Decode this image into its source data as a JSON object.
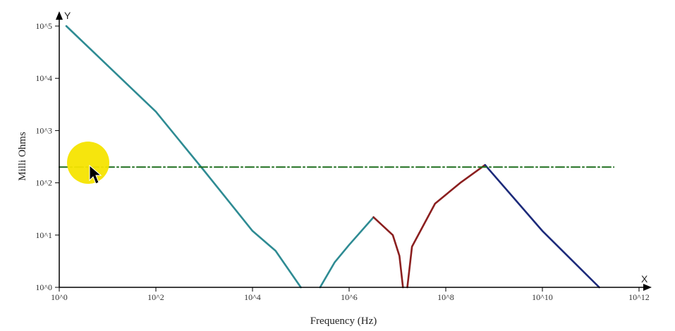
{
  "chart_data": {
    "type": "line",
    "title": "",
    "xlabel": "Frequency (Hz)",
    "ylabel": "Milli Ohms",
    "x_axis_letter": "X",
    "y_axis_letter": "Y",
    "x_scale": "log",
    "y_scale": "log",
    "xlim": [
      1,
      1000000000000
    ],
    "ylim": [
      1,
      100000
    ],
    "x_ticks": [
      {
        "value": 1,
        "label": "10^0"
      },
      {
        "value": 100,
        "label": "10^2"
      },
      {
        "value": 10000,
        "label": "10^4"
      },
      {
        "value": 1000000,
        "label": "10^6"
      },
      {
        "value": 100000000,
        "label": "10^8"
      },
      {
        "value": 10000000000,
        "label": "10^10"
      },
      {
        "value": 1000000000000,
        "label": "10^12"
      }
    ],
    "y_ticks": [
      {
        "value": 1,
        "label": "10^0"
      },
      {
        "value": 10,
        "label": "10^1"
      },
      {
        "value": 100,
        "label": "10^2"
      },
      {
        "value": 1000,
        "label": "10^3"
      },
      {
        "value": 10000,
        "label": "10^4"
      },
      {
        "value": 100000,
        "label": "10^5"
      }
    ],
    "grid": false,
    "series": [
      {
        "color": "#2e8b93",
        "style": "solid",
        "points": [
          [
            1.4,
            100000
          ],
          [
            100,
            2300
          ],
          [
            1000,
            170
          ],
          [
            10000,
            12
          ],
          [
            30000,
            5
          ],
          [
            100000,
            1
          ]
        ]
      },
      {
        "color": "#2e8b93",
        "style": "solid",
        "points": [
          [
            250000,
            1
          ],
          [
            500000,
            3
          ],
          [
            1000000,
            6.5
          ],
          [
            3200000,
            22
          ]
        ]
      },
      {
        "color": "#8b1f1f",
        "style": "solid",
        "points": [
          [
            3200000,
            22
          ],
          [
            8000000,
            10
          ],
          [
            11000000,
            4
          ],
          [
            13000000,
            1
          ]
        ]
      },
      {
        "color": "#8b1f1f",
        "style": "solid",
        "points": [
          [
            16000000,
            1
          ],
          [
            20000000,
            6
          ],
          [
            60000000,
            40
          ],
          [
            200000000,
            100
          ],
          [
            650000000,
            220
          ]
        ]
      },
      {
        "color": "#1c2a7a",
        "style": "solid",
        "points": [
          [
            650000000,
            220
          ],
          [
            10000000000,
            12
          ],
          [
            150000000000,
            1
          ]
        ]
      },
      {
        "color": "#1e6e1e",
        "style": "dashdot",
        "points": [
          [
            1,
            200
          ],
          [
            300000000000,
            200
          ]
        ]
      }
    ]
  },
  "overlay": {
    "cursor_highlight_color": "#f5e400"
  }
}
